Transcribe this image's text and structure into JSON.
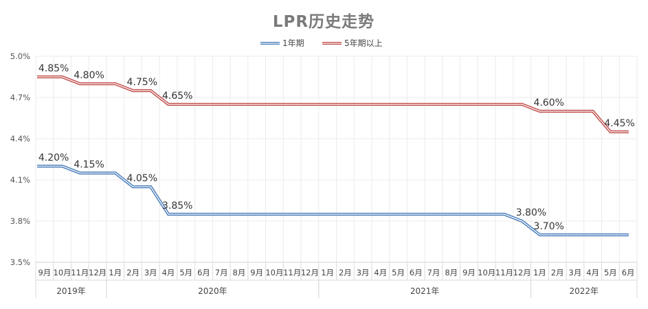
{
  "chart_data": {
    "type": "line",
    "title": "LPR历史走势",
    "xlabel": "",
    "ylabel": "",
    "ylim": [
      3.5,
      5.0
    ],
    "ytick_values": [
      3.5,
      3.8,
      4.1,
      4.4,
      4.7,
      5.0
    ],
    "ytick_labels": [
      "3.5%",
      "3.8%",
      "4.1%",
      "4.4%",
      "4.7%",
      "5.0%"
    ],
    "grid": true,
    "legend_position": "top-center",
    "categories": [
      "9月",
      "10月",
      "11月",
      "12月",
      "1月",
      "2月",
      "3月",
      "4月",
      "5月",
      "6月",
      "7月",
      "8月",
      "9月",
      "10月",
      "11月",
      "12月",
      "1月",
      "2月",
      "3月",
      "4月",
      "5月",
      "6月",
      "7月",
      "8月",
      "9月",
      "10月",
      "11月",
      "12月",
      "1月",
      "2月",
      "3月",
      "4月",
      "5月",
      "6月"
    ],
    "year_groups": [
      {
        "label": "2019年",
        "start": 0,
        "end": 3
      },
      {
        "label": "2020年",
        "start": 4,
        "end": 15
      },
      {
        "label": "2021年",
        "start": 16,
        "end": 27
      },
      {
        "label": "2022年",
        "start": 28,
        "end": 33
      }
    ],
    "series": [
      {
        "name": "1年期",
        "color": "#4a7ebb",
        "values": [
          4.2,
          4.2,
          4.15,
          4.15,
          4.15,
          4.05,
          4.05,
          3.85,
          3.85,
          3.85,
          3.85,
          3.85,
          3.85,
          3.85,
          3.85,
          3.85,
          3.85,
          3.85,
          3.85,
          3.85,
          3.85,
          3.85,
          3.85,
          3.85,
          3.85,
          3.85,
          3.85,
          3.8,
          3.7,
          3.7,
          3.7,
          3.7,
          3.7,
          3.7
        ],
        "labels": [
          {
            "index": 0,
            "text": "4.20%"
          },
          {
            "index": 2,
            "text": "4.15%"
          },
          {
            "index": 5,
            "text": "4.05%"
          },
          {
            "index": 7,
            "text": "3.85%"
          },
          {
            "index": 27,
            "text": "3.80%"
          },
          {
            "index": 28,
            "text": "3.70%"
          }
        ]
      },
      {
        "name": "5年期以上",
        "color": "#c0504d",
        "values": [
          4.85,
          4.85,
          4.8,
          4.8,
          4.8,
          4.75,
          4.75,
          4.65,
          4.65,
          4.65,
          4.65,
          4.65,
          4.65,
          4.65,
          4.65,
          4.65,
          4.65,
          4.65,
          4.65,
          4.65,
          4.65,
          4.65,
          4.65,
          4.65,
          4.65,
          4.65,
          4.65,
          4.65,
          4.6,
          4.6,
          4.6,
          4.6,
          4.45,
          4.45
        ],
        "labels": [
          {
            "index": 0,
            "text": "4.85%"
          },
          {
            "index": 2,
            "text": "4.80%"
          },
          {
            "index": 5,
            "text": "4.75%"
          },
          {
            "index": 7,
            "text": "4.65%"
          },
          {
            "index": 28,
            "text": "4.60%"
          },
          {
            "index": 32,
            "text": "4.45%"
          }
        ]
      }
    ]
  }
}
